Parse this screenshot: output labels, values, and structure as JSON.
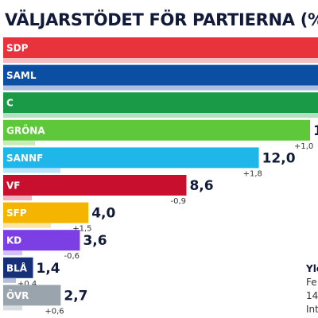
{
  "title": "VÄLJARSTÖDET FÖR PARTIERNA (%)",
  "source": {
    "org": "Yle",
    "line1": "Fe",
    "line2": "14.",
    "line3": "Int"
  },
  "chart_data": {
    "type": "bar",
    "orientation": "horizontal",
    "title": "VÄLJARSTÖDET FÖR PARTIERNA (%)",
    "categories": [
      "SDP",
      "SAML",
      "C",
      "GRÖNA",
      "SANNF",
      "VF",
      "SFP",
      "KD",
      "BLÅ",
      "ÖVR"
    ],
    "values": [
      null,
      null,
      null,
      null,
      12.0,
      8.6,
      4.0,
      3.6,
      1.4,
      2.7
    ],
    "value_labels": [
      "",
      "",
      "",
      "1",
      "12,0",
      "8,6",
      "4,0",
      "3,6",
      "1,4",
      "2,7"
    ],
    "change_labels": [
      "",
      "",
      "",
      "+1,0",
      "+1,8",
      "-0,9",
      "+1,5",
      "-0,6",
      "+0,4",
      "+0,6"
    ],
    "changes": [
      null,
      null,
      null,
      1.0,
      1.8,
      -0.9,
      1.5,
      -0.6,
      0.4,
      0.6
    ],
    "colors": [
      "#e8333d",
      "#0c4ea2",
      "#1a9a47",
      "#5ec83a",
      "#1fb7ea",
      "#c8102e",
      "#f4b400",
      "#7b3fe4",
      "#16307a",
      "#9aa4ad"
    ],
    "change_colors": [
      "#f5bcc1",
      "#aebfe0",
      "#b6dec0",
      "#c8ecb8",
      "#b6e6f8",
      "#f3b3c0",
      "#fbe3a3",
      "#d4c2f6",
      "#b6bfd9",
      "#d8dde1"
    ]
  }
}
